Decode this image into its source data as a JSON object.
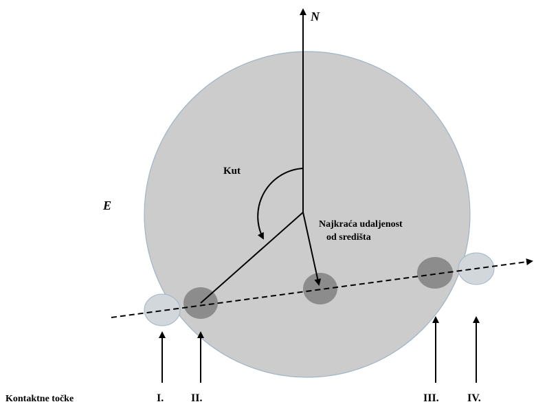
{
  "diagram": {
    "north_label": "N",
    "east_label": "E",
    "angle_label": "Kut",
    "distance_label_line1": "Najkraća udaljenost",
    "distance_label_line2": "od središta",
    "contacts_label": "Kontaktne točke",
    "contact_points": [
      "I.",
      "II.",
      "III.",
      "IV."
    ]
  },
  "colors": {
    "main_disk_fill": "#cccccc",
    "main_disk_stroke": "#9fb3c8",
    "small_disk_fill": "#d2d7dc",
    "dark_disk_fill": "#8c8c8c",
    "line": "#000000"
  }
}
